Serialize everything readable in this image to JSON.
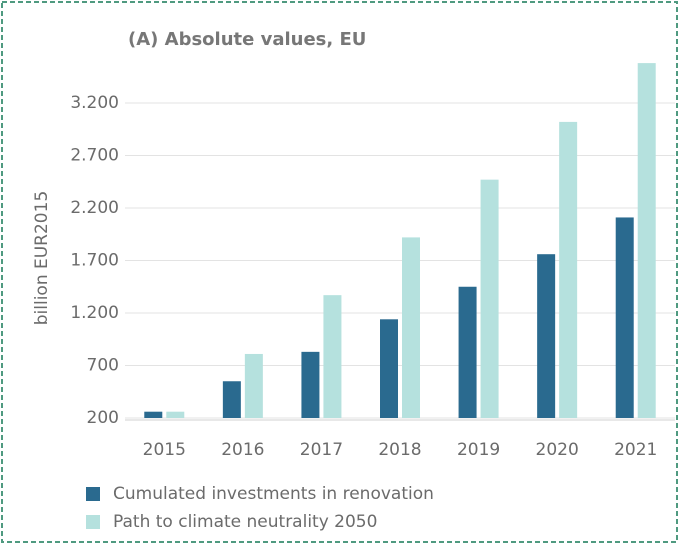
{
  "chart_data": {
    "type": "bar",
    "title": "(A)  Absolute values, EU",
    "y_label": "billion EUR2015",
    "categories": [
      "2015",
      "2016",
      "2017",
      "2018",
      "2019",
      "2020",
      "2021"
    ],
    "series": [
      {
        "name": "Cumulated investments in renovation",
        "color": "#2a6a8f",
        "values": [
          260,
          550,
          830,
          1140,
          1450,
          1760,
          2110
        ]
      },
      {
        "name": "Path to climate neutrality 2050",
        "color": "#b5e1de",
        "values": [
          260,
          810,
          1370,
          1920,
          2470,
          3020,
          3580
        ]
      }
    ],
    "ylim": [
      200,
      3600
    ],
    "yticks": [
      200,
      700,
      {
        "value": 1200,
        "label": "1.200"
      },
      {
        "value": 1700,
        "label": "1.700"
      },
      {
        "value": 2200,
        "label": "2.200"
      },
      {
        "value": 2700,
        "label": "2.700"
      },
      {
        "value": 3200,
        "label": "3.200"
      }
    ],
    "grid": true
  }
}
